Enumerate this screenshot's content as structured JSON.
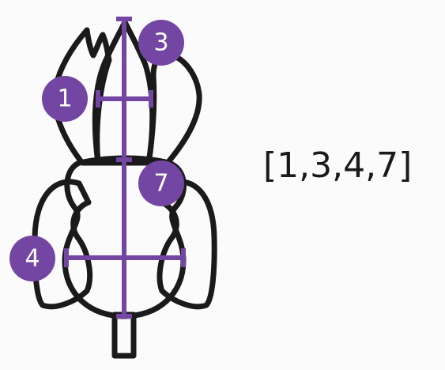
{
  "answer": "[1,3,4,7]",
  "markers": [
    {
      "label": "1"
    },
    {
      "label": "3"
    },
    {
      "label": "4"
    },
    {
      "label": "7"
    }
  ],
  "colors": {
    "accent": "#7446a3",
    "outline": "#1a1a1a",
    "background": "#fbfbfb",
    "badge_text": "#ffffff"
  }
}
